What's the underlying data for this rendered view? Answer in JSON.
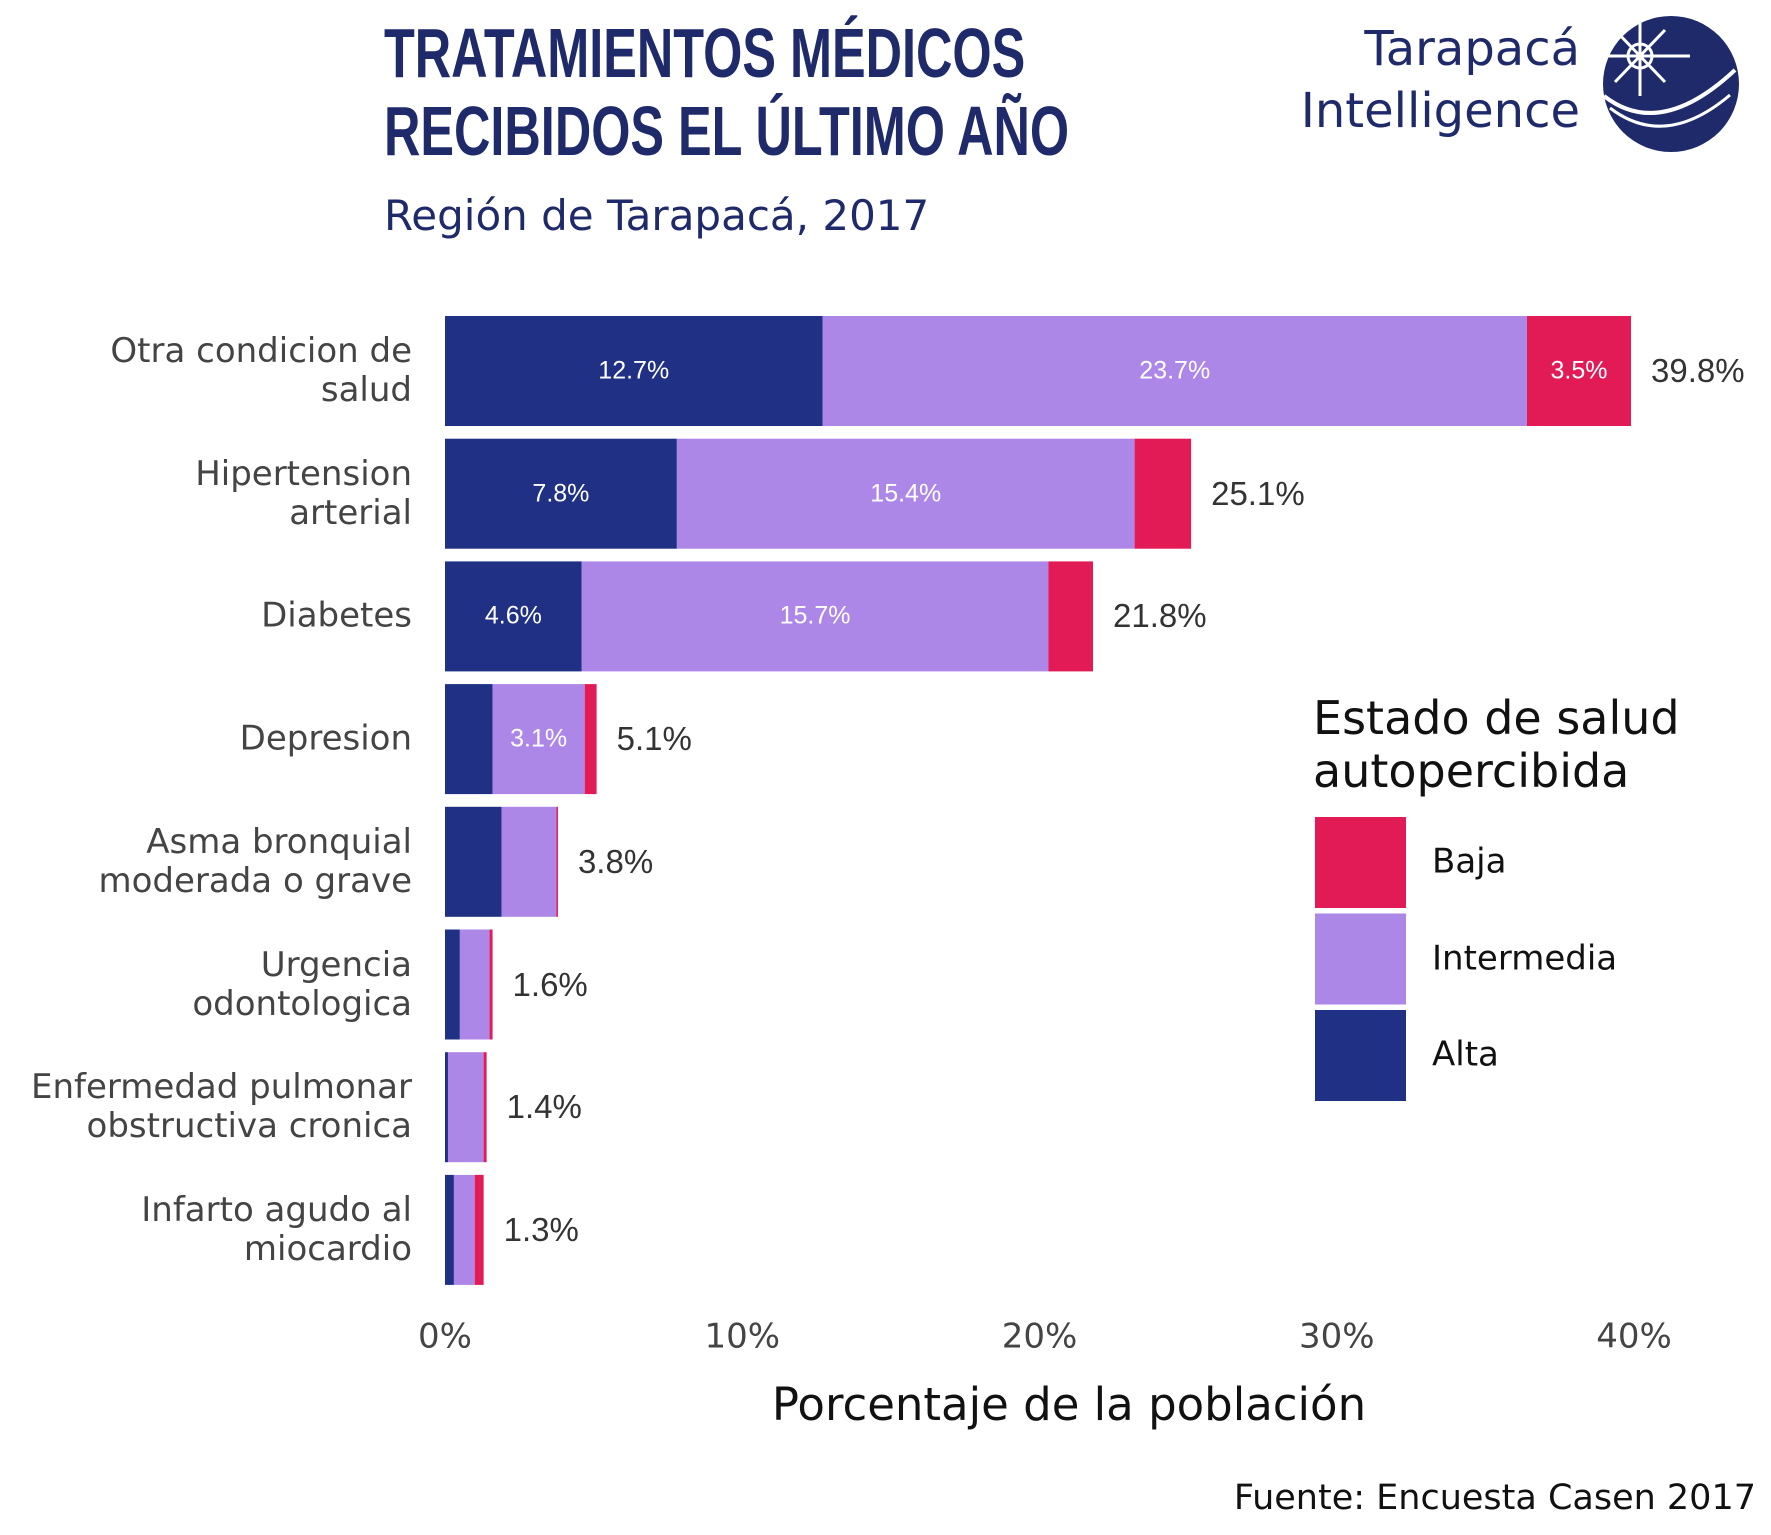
{
  "chart_data": {
    "type": "stacked-barh",
    "title": "TRATAMIENTOS MÉDICOS\nRECIBIDOS EL ÚLTIMO AÑO",
    "subtitle": "Región de Tarapacá, 2017",
    "logo": {
      "line1": "Tarapacá",
      "line2": "Intelligence"
    },
    "categories": [
      "Otra condicion de\nsalud",
      "Hipertension\narterial",
      "Diabetes",
      "Depresion",
      "Asma bronquial\nmoderada o grave",
      "Urgencia\nodontologica",
      "Enfermedad pulmonar\nobstructiva cronica",
      "Infarto agudo al\nmiocardio"
    ],
    "series": [
      {
        "name": "Alta",
        "color": "#1f3085",
        "values": [
          12.7,
          7.8,
          4.6,
          1.6,
          1.9,
          0.5,
          0.1,
          0.3
        ],
        "value_labels": [
          "12.7%",
          "7.8%",
          "4.6%",
          null,
          null,
          null,
          null,
          null
        ]
      },
      {
        "name": "Intermedia",
        "color": "#ad87e8",
        "values": [
          23.7,
          15.4,
          15.7,
          3.1,
          1.85,
          1.0,
          1.2,
          0.7
        ],
        "value_labels": [
          "23.7%",
          "15.4%",
          "15.7%",
          "3.1%",
          null,
          null,
          null,
          null
        ]
      },
      {
        "name": "Baja",
        "color": "#e21a56",
        "values": [
          3.5,
          1.9,
          1.5,
          0.4,
          0.05,
          0.1,
          0.1,
          0.3
        ],
        "value_labels": [
          "3.5%",
          null,
          null,
          null,
          null,
          null,
          null,
          null
        ]
      }
    ],
    "totals": [
      39.8,
      25.1,
      21.8,
      5.1,
      3.8,
      1.6,
      1.4,
      1.3
    ],
    "total_labels": [
      "39.8%",
      "25.1%",
      "21.8%",
      "5.1%",
      "3.8%",
      "1.6%",
      "1.4%",
      "1.3%"
    ],
    "xlim": [
      0,
      40
    ],
    "xticks": [
      {
        "value": 0,
        "label": "0%"
      },
      {
        "value": 10,
        "label": "10%"
      },
      {
        "value": 20,
        "label": "20%"
      },
      {
        "value": 30,
        "label": "30%"
      },
      {
        "value": 40,
        "label": "40%"
      }
    ],
    "xlabel": "Porcentaje de la población",
    "legend_title": "Estado de salud\nautopercibida",
    "source": "Fuente: Encuesta Casen 2017"
  }
}
